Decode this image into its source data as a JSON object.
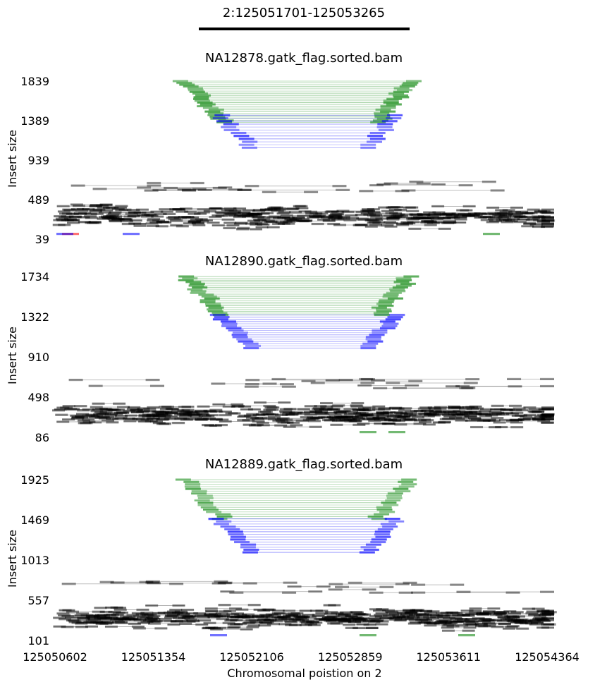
{
  "region_title": "2:125051701-125053265",
  "region": {
    "start": 125051701,
    "end": 125053265
  },
  "x_axis": {
    "label": "Chromosomal poistion on 2",
    "ticks": [
      125050602,
      125051354,
      125052106,
      125052859,
      125053611,
      125054364
    ],
    "range": [
      125050602,
      125054364
    ]
  },
  "colors": {
    "concordant": "#000000",
    "deletion": "#008000",
    "duplication": "#0000ff",
    "inversion": "#ff0000"
  },
  "chart_data": [
    {
      "type": "scatter",
      "title": "NA12878.gatk_flag.sorted.bam",
      "ylabel": "Insert size",
      "y_ticks": [
        39,
        489,
        939,
        1389,
        1839
      ],
      "ylim": [
        39,
        1839
      ],
      "xlim": [
        125050602,
        125054364
      ],
      "reads": {
        "deletion_count": 24,
        "duplication_count": 12,
        "concordant_count": 260,
        "discordant_small": [
          "red",
          "blue",
          "green"
        ]
      },
      "sv_insert_range": {
        "deletion": [
          1370,
          1839
        ],
        "duplication": [
          1080,
          1450
        ]
      }
    },
    {
      "type": "scatter",
      "title": "NA12890.gatk_flag.sorted.bam",
      "ylabel": "Insert size",
      "y_ticks": [
        86,
        498,
        910,
        1322,
        1734
      ],
      "ylim": [
        86,
        1734
      ],
      "xlim": [
        125050602,
        125054364
      ],
      "reads": {
        "deletion_count": 22,
        "duplication_count": 16,
        "concordant_count": 280
      },
      "sv_insert_range": {
        "deletion": [
          1340,
          1734
        ],
        "duplication": [
          1000,
          1340
        ]
      }
    },
    {
      "type": "scatter",
      "title": "NA12889.gatk_flag.sorted.bam",
      "ylabel": "Insert size",
      "y_ticks": [
        101,
        557,
        1013,
        1469,
        1925
      ],
      "ylim": [
        101,
        1925
      ],
      "xlim": [
        125050602,
        125054364
      ],
      "reads": {
        "deletion_count": 18,
        "duplication_count": 14,
        "concordant_count": 300
      },
      "sv_insert_range": {
        "deletion": [
          1480,
          1925
        ],
        "duplication": [
          1100,
          1480
        ]
      }
    }
  ]
}
